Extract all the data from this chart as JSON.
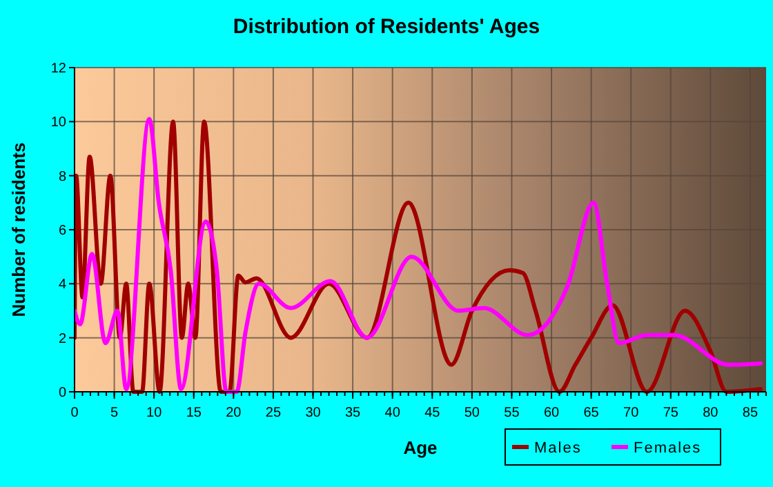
{
  "chart_data": {
    "type": "line",
    "title": "Distribution of Residents' Ages",
    "xlabel": "Age",
    "ylabel": "Number of residents",
    "xlim": [
      0,
      87
    ],
    "xticks": [
      0,
      5,
      10,
      15,
      20,
      25,
      30,
      35,
      40,
      45,
      50,
      55,
      60,
      65,
      70,
      75,
      80,
      85
    ],
    "ylim": [
      0,
      12
    ],
    "yticks": [
      0,
      2,
      4,
      6,
      8,
      10,
      12
    ],
    "grid": true,
    "legend": "bottom right",
    "marker": "none",
    "line_style": "solid",
    "series": [
      {
        "name": "Males",
        "color": "#a00000",
        "x": [
          0,
          0.2,
          1,
          1.9,
          3.3,
          4.5,
          5.7,
          6.5,
          7.4,
          8.5,
          9.4,
          10.7,
          12.4,
          13.5,
          14.3,
          15.2,
          16.3,
          18.4,
          19.5,
          20.6,
          21.5,
          22.9,
          27.2,
          32,
          36.8,
          42,
          47.4,
          50,
          54.7,
          56.4,
          58,
          61,
          63,
          65,
          67.7,
          72,
          76.8,
          80,
          82,
          86.3
        ],
        "values": [
          2,
          8,
          3.5,
          8.7,
          4,
          8,
          2,
          4,
          0,
          0,
          4,
          0,
          10,
          2,
          4,
          2,
          10,
          0,
          0,
          4.3,
          4.05,
          4.2,
          2,
          4,
          2,
          7,
          1,
          3,
          4.5,
          4.4,
          3,
          0,
          1,
          2,
          3.2,
          0,
          3,
          1.5,
          0,
          0.1
        ]
      },
      {
        "name": "Females",
        "color": "#ff00ff",
        "x": [
          0,
          0.7,
          2.2,
          3.9,
          5.4,
          6.5,
          9.4,
          10.6,
          12.1,
          13.4,
          16.5,
          17.9,
          19.1,
          20.4,
          21.5,
          23.2,
          27.2,
          32.2,
          36.8,
          42.4,
          48.3,
          51.5,
          57,
          62,
          65.3,
          67,
          68.5,
          72,
          75.4,
          82.3,
          86.3
        ],
        "values": [
          3,
          2.5,
          5.1,
          1.8,
          3,
          0.1,
          10.1,
          7,
          4.5,
          0.1,
          6.3,
          4.5,
          0,
          0,
          2.2,
          4,
          3.1,
          4.1,
          2,
          5,
          3,
          3.1,
          2.1,
          3.9,
          7,
          4,
          1.8,
          2.1,
          2.1,
          1,
          1.05
        ]
      }
    ]
  }
}
